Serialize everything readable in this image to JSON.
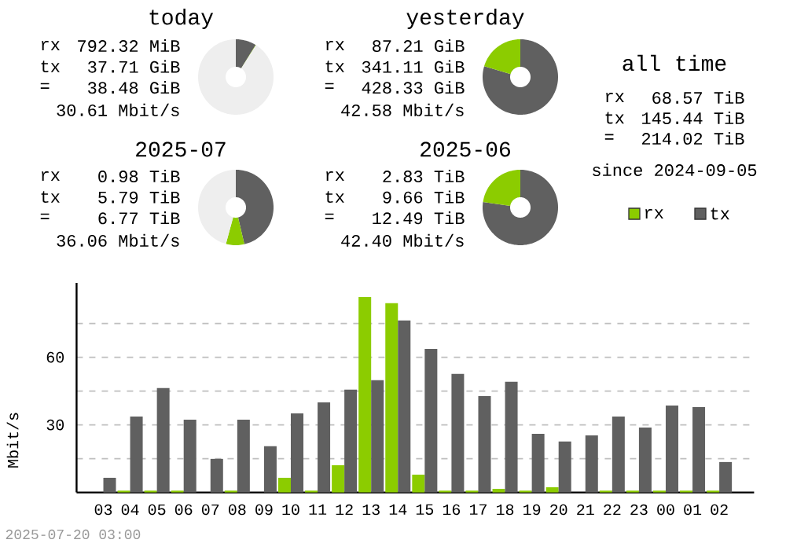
{
  "chart_data": [
    {
      "type": "donut",
      "title": "today",
      "categories": [
        null,
        null,
        null
      ],
      "values": [
        8.8,
        0.18,
        91.02
      ],
      "colors": [
        "#606060",
        "#8ccc00",
        "#eeeeee"
      ],
      "annotations": [
        "rx",
        "792.32 MiB",
        "tx",
        "37.71 GiB",
        "=",
        "38.48 GiB",
        "30.61 Mbit/s"
      ]
    },
    {
      "type": "donut",
      "title": "yesterday",
      "categories": [
        null,
        null
      ],
      "values": [
        79.64,
        20.36
      ],
      "colors": [
        "#606060",
        "#8ccc00"
      ],
      "annotations": [
        "rx",
        "87.21 GiB",
        "tx",
        "341.11 GiB",
        "=",
        "428.33 GiB",
        "42.58 Mbit/s"
      ]
    },
    {
      "type": "other",
      "title": "all time",
      "annotations": [
        "rx",
        "68.57 TiB",
        "tx",
        "145.44 TiB",
        "=",
        "214.02 TiB",
        "since 2024-09-05"
      ]
    },
    {
      "type": "donut",
      "title": "2025-07",
      "categories": [
        null,
        null,
        null
      ],
      "values": [
        46.36,
        7.85,
        45.79
      ],
      "colors": [
        "#606060",
        "#8ccc00",
        "#eeeeee"
      ],
      "annotations": [
        "rx",
        "0.98 TiB",
        "tx",
        "5.79 TiB",
        "=",
        "6.77 TiB",
        "36.06 Mbit/s"
      ]
    },
    {
      "type": "donut",
      "title": "2025-06",
      "categories": [
        null,
        null
      ],
      "values": [
        77.34,
        22.66
      ],
      "colors": [
        "#606060",
        "#8ccc00"
      ],
      "annotations": [
        "rx",
        "2.83 TiB",
        "tx",
        "9.66 TiB",
        "=",
        "12.49 TiB",
        "42.40 Mbit/s"
      ]
    },
    {
      "type": "bar",
      "categories": [
        "03",
        "04",
        "05",
        "06",
        "07",
        "08",
        "09",
        "10",
        "11",
        "12",
        "13",
        "14",
        "15",
        "16",
        "17",
        "18",
        "19",
        "20",
        "21",
        "22",
        "23",
        "00",
        "01",
        "02"
      ],
      "ylabel": "Mbit/s",
      "ylim": [
        0,
        93
      ],
      "yticks": [
        {
          "value": 15,
          "label": null
        },
        30,
        {
          "value": 45,
          "label": null
        },
        60,
        {
          "value": 75,
          "label": null
        }
      ],
      "grid": "y",
      "legend": "top right",
      "annotations": [
        "2025-07-20 03:00"
      ],
      "series": [
        {
          "name": "rx",
          "color": "#8ccc00",
          "values": [
            0,
            0.8,
            0.8,
            0.8,
            0,
            0.8,
            0,
            6.5,
            0.8,
            12.1,
            86.7,
            84.0,
            7.9,
            0.8,
            0.8,
            1.6,
            0.8,
            2.3,
            0,
            0.8,
            0.8,
            0.8,
            0.8,
            0.8
          ]
        },
        {
          "name": "tx",
          "color": "#606060",
          "values": [
            6.5,
            33.7,
            46.3,
            32.3,
            14.9,
            32.3,
            20.5,
            35.1,
            40.0,
            45.6,
            49.8,
            76.3,
            63.7,
            52.6,
            42.8,
            49.1,
            26.0,
            22.6,
            25.3,
            33.7,
            28.8,
            38.6,
            37.9,
            13.5
          ]
        }
      ]
    }
  ]
}
